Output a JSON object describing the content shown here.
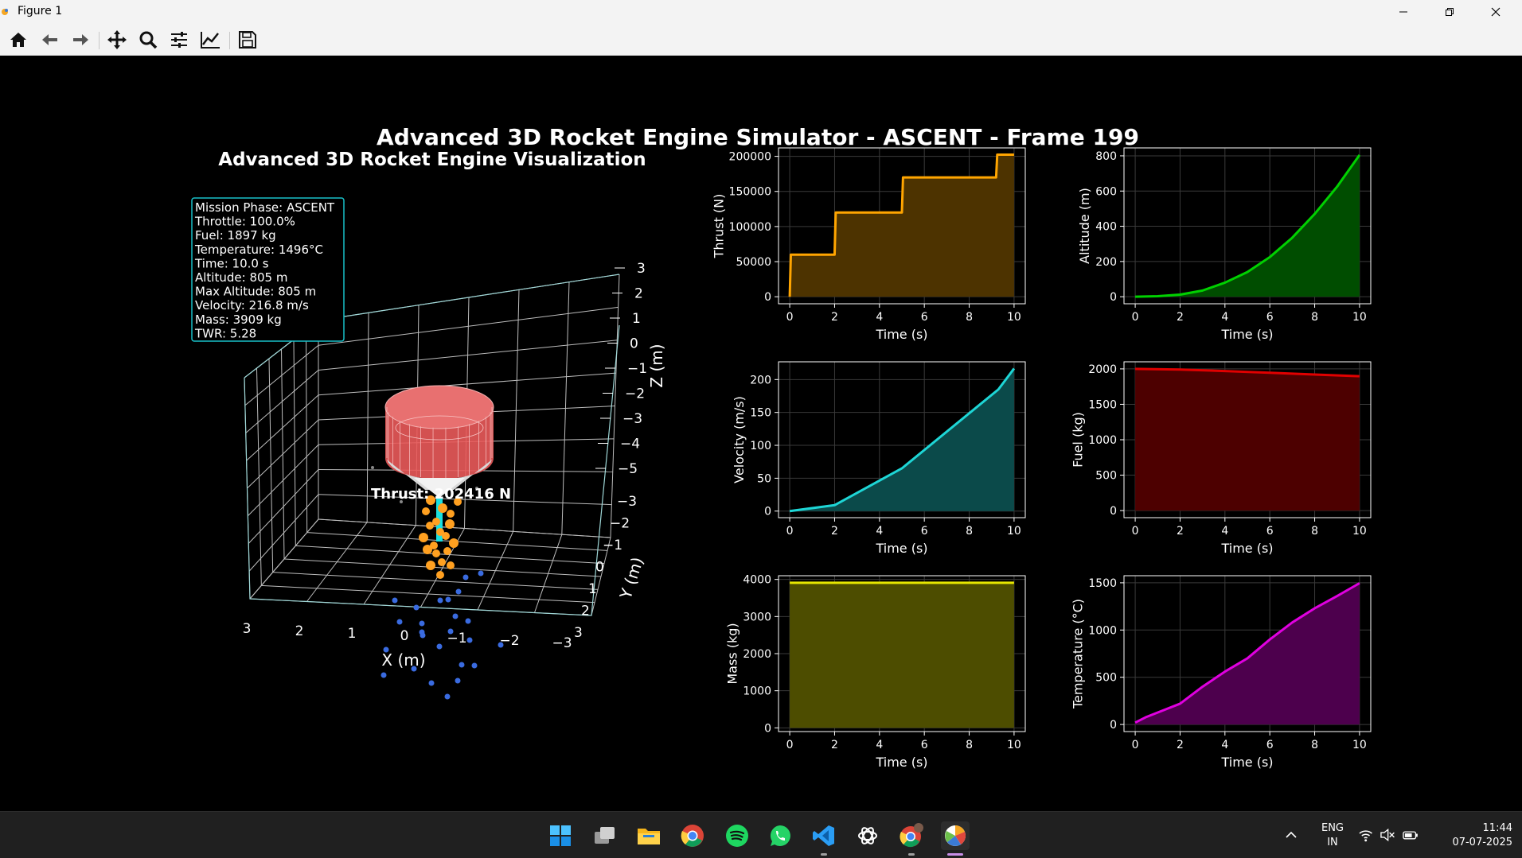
{
  "window": {
    "title": "Figure 1"
  },
  "toolbar": {
    "buttons": [
      "home-icon",
      "back-icon",
      "forward-icon",
      "pan-icon",
      "zoom-icon",
      "configure-subplots-icon",
      "edit-axis-icon",
      "save-icon"
    ]
  },
  "figure": {
    "suptitle": "Advanced 3D Rocket Engine Simulator - ASCENT - Frame 199",
    "viz3d": {
      "title": "Advanced 3D Rocket Engine Visualization",
      "info_lines": [
        "Mission Phase: ASCENT",
        "Throttle: 100.0%",
        "Fuel: 1897 kg",
        "Temperature: 1496°C",
        "Time: 10.0 s",
        "Altitude: 805 m",
        "Max Altitude: 805 m",
        "Velocity: 216.8 m/s",
        "Mass: 3909 kg",
        "TWR: 5.28"
      ],
      "thrust_label": "Thrust: 202416 N",
      "x_axis_label": "X (m)",
      "y_axis_label": "Y (m)",
      "z_axis_label": "Z (m)",
      "x_ticks": [
        "3",
        "2",
        "1",
        "0",
        "−1",
        "−2",
        "−3"
      ],
      "y_ticks": [
        "−3",
        "−2",
        "−1",
        "0",
        "1",
        "2",
        "3"
      ],
      "z_ticks": [
        "3",
        "2",
        "1",
        "0",
        "−1",
        "−2",
        "−3",
        "−4",
        "−5"
      ]
    }
  },
  "chart_data": [
    {
      "type": "line",
      "xlabel": "Time (s)",
      "ylabel": "Thrust (N)",
      "color": "#ffa500",
      "fill": "#4d3300",
      "x": [
        0,
        0.05,
        2,
        2.05,
        5,
        5.05,
        9.2,
        9.25,
        10
      ],
      "y": [
        0,
        60000,
        60000,
        120000,
        120000,
        170000,
        170000,
        202416,
        202416
      ],
      "xlim": [
        -0.5,
        10.5
      ],
      "ylim": [
        -10000,
        212000
      ],
      "xticks": [
        0,
        2,
        4,
        6,
        8,
        10
      ],
      "yticks": [
        0,
        50000,
        100000,
        150000,
        200000
      ]
    },
    {
      "type": "line",
      "xlabel": "Time (s)",
      "ylabel": "Altitude (m)",
      "color": "#00d100",
      "fill": "#004d00",
      "x": [
        0,
        1,
        2,
        3,
        4,
        5,
        6,
        7,
        8,
        9,
        10
      ],
      "y": [
        0,
        3,
        12,
        35,
        80,
        140,
        225,
        335,
        470,
        625,
        805
      ],
      "xlim": [
        -0.5,
        10.5
      ],
      "ylim": [
        -40,
        845
      ],
      "xticks": [
        0,
        2,
        4,
        6,
        8,
        10
      ],
      "yticks": [
        0,
        200,
        400,
        600,
        800
      ]
    },
    {
      "type": "line",
      "xlabel": "Time (s)",
      "ylabel": "Velocity (m/s)",
      "color": "#1ed6d6",
      "fill": "#0b4a4a",
      "x": [
        0,
        2,
        5,
        9.3,
        10
      ],
      "y": [
        0,
        9,
        65,
        185,
        216.8
      ],
      "xlim": [
        -0.5,
        10.5
      ],
      "ylim": [
        -10,
        227
      ],
      "xticks": [
        0,
        2,
        4,
        6,
        8,
        10
      ],
      "yticks": [
        0,
        50,
        100,
        150,
        200
      ]
    },
    {
      "type": "line",
      "xlabel": "Time (s)",
      "ylabel": "Fuel (kg)",
      "color": "#e00000",
      "fill": "#4d0000",
      "x": [
        0,
        2,
        4,
        6,
        8,
        10
      ],
      "y": [
        2000,
        1990,
        1970,
        1945,
        1920,
        1897
      ],
      "xlim": [
        -0.5,
        10.5
      ],
      "ylim": [
        -100,
        2100
      ],
      "xticks": [
        0,
        2,
        4,
        6,
        8,
        10
      ],
      "yticks": [
        0,
        500,
        1000,
        1500,
        2000
      ]
    },
    {
      "type": "line",
      "xlabel": "Time (s)",
      "ylabel": "Mass (kg)",
      "color": "#e6e600",
      "fill": "#4d4d00",
      "x": [
        0,
        10
      ],
      "y": [
        3909,
        3909
      ],
      "xlim": [
        -0.5,
        10.5
      ],
      "ylim": [
        -100,
        4100
      ],
      "xticks": [
        0,
        2,
        4,
        6,
        8,
        10
      ],
      "yticks": [
        0,
        1000,
        2000,
        3000,
        4000
      ]
    },
    {
      "type": "line",
      "xlabel": "Time (s)",
      "ylabel": "Temperature (°C)",
      "color": "#e000e0",
      "fill": "#4d004d",
      "x": [
        0,
        0.5,
        2,
        3,
        4,
        5,
        6,
        7,
        8,
        9,
        10
      ],
      "y": [
        20,
        80,
        220,
        400,
        560,
        700,
        900,
        1080,
        1230,
        1360,
        1496
      ],
      "xlim": [
        -0.5,
        10.5
      ],
      "ylim": [
        -75,
        1575
      ],
      "xticks": [
        0,
        2,
        4,
        6,
        8,
        10
      ],
      "yticks": [
        0,
        500,
        1000,
        1500
      ]
    }
  ],
  "taskbar": {
    "apps": [
      "windows-start-icon",
      "task-view-icon",
      "file-explorer-icon",
      "chrome-icon",
      "spotify-icon",
      "whatsapp-icon",
      "vscode-icon",
      "chatgpt-icon",
      "chrome-profile-icon",
      "python-figure-icon"
    ],
    "language": "ENG",
    "region": "IN",
    "time": "11:44",
    "date": "07-07-2025"
  }
}
